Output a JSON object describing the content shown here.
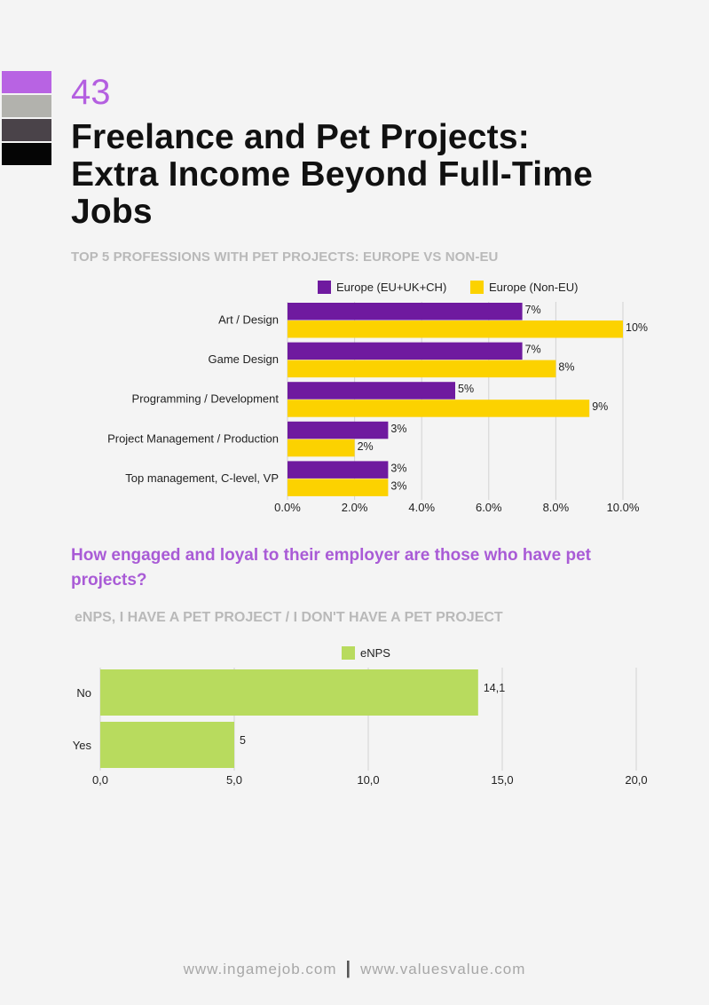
{
  "colors": {
    "swatches": [
      "#b863e3",
      "#b2b2ad",
      "#4a4349",
      "#050505"
    ],
    "purple": "#6f1a9f",
    "yellow": "#fcd200",
    "green": "#b8db5e",
    "accent": "#a95bd6"
  },
  "page": {
    "number": "43",
    "title": "Freelance and Pet Projects: Extra Income Beyond Full-Time Jobs",
    "question": "How engaged and loyal to their employer are those who have pet projects?"
  },
  "footer": {
    "left": "www.ingamejob.com",
    "separator": "|",
    "right": "www.valuesvalue.com"
  },
  "chart_data": [
    {
      "type": "bar",
      "orientation": "horizontal",
      "title": "TOP 5 PROFESSIONS WITH PET PROJECTS: EUROPE VS NON-EU",
      "categories": [
        "Art / Design",
        "Game Design",
        "Programming / Development",
        "Project Management / Production",
        "Top management, C-level, VP"
      ],
      "series": [
        {
          "name": "Europe (EU+UK+CH)",
          "values": [
            7,
            7,
            5,
            3,
            3
          ],
          "labels": [
            "7%",
            "7%",
            "5%",
            "3%",
            "3%"
          ]
        },
        {
          "name": "Europe (Non-EU)",
          "values": [
            10,
            8,
            9,
            2,
            3
          ],
          "labels": [
            "10%",
            "8%",
            "9%",
            "2%",
            "3%"
          ]
        }
      ],
      "xlim": [
        0,
        10
      ],
      "xticks": [
        "0.0%",
        "2.0%",
        "4.0%",
        "6.0%",
        "8.0%",
        "10.0%"
      ],
      "grid": true,
      "legend": "top"
    },
    {
      "type": "bar",
      "orientation": "horizontal",
      "title": "eNPS, I HAVE A PET PROJECT / I DON'T HAVE A PET PROJECT",
      "categories": [
        "No",
        "Yes"
      ],
      "series": [
        {
          "name": "eNPS",
          "values": [
            14.1,
            5
          ],
          "labels": [
            "14,1",
            "5"
          ]
        }
      ],
      "xlim": [
        0,
        20
      ],
      "xticks": [
        "0,0",
        "5,0",
        "10,0",
        "15,0",
        "20,0"
      ],
      "grid": true,
      "legend": "top"
    }
  ]
}
